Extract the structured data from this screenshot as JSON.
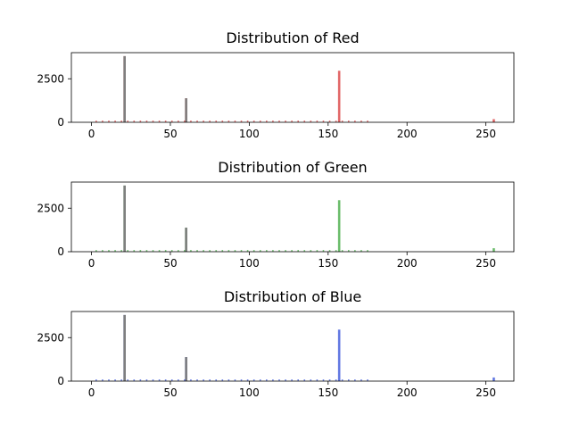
{
  "chart_data": [
    {
      "type": "bar",
      "title": "Distribution of Red",
      "xlabel": "",
      "ylabel": "",
      "xlim": [
        -12.75,
        267.75
      ],
      "ylim": [
        0,
        4000
      ],
      "xticks": [
        0,
        50,
        100,
        150,
        200,
        250
      ],
      "yticks": [
        0,
        2500
      ],
      "grid": false,
      "series": [
        {
          "color": "#d62728",
          "x": [
            21,
            60,
            157,
            255
          ],
          "values": [
            3800,
            1380,
            2960,
            180
          ]
        }
      ],
      "overlap_gray_heights": [
        3800,
        1380
      ]
    },
    {
      "type": "bar",
      "title": "Distribution of Green",
      "xlabel": "",
      "ylabel": "",
      "xlim": [
        -12.75,
        267.75
      ],
      "ylim": [
        0,
        4000
      ],
      "xticks": [
        0,
        50,
        100,
        150,
        200,
        250
      ],
      "yticks": [
        0,
        2500
      ],
      "grid": false,
      "series": [
        {
          "color": "#2ca02c",
          "x": [
            21,
            60,
            157,
            255
          ],
          "values": [
            3800,
            1380,
            2960,
            200
          ]
        }
      ],
      "overlap_gray_heights": [
        3800,
        1380
      ]
    },
    {
      "type": "bar",
      "title": "Distribution of Blue",
      "xlabel": "",
      "ylabel": "",
      "xlim": [
        -12.75,
        267.75
      ],
      "ylim": [
        0,
        4000
      ],
      "xticks": [
        0,
        50,
        100,
        150,
        200,
        250
      ],
      "yticks": [
        0,
        2500
      ],
      "grid": false,
      "series": [
        {
          "color": "#1f3fd6",
          "x": [
            21,
            60,
            157,
            255
          ],
          "values": [
            3800,
            1380,
            2960,
            210
          ]
        }
      ],
      "overlap_gray_heights": [
        3800,
        1380
      ]
    }
  ]
}
